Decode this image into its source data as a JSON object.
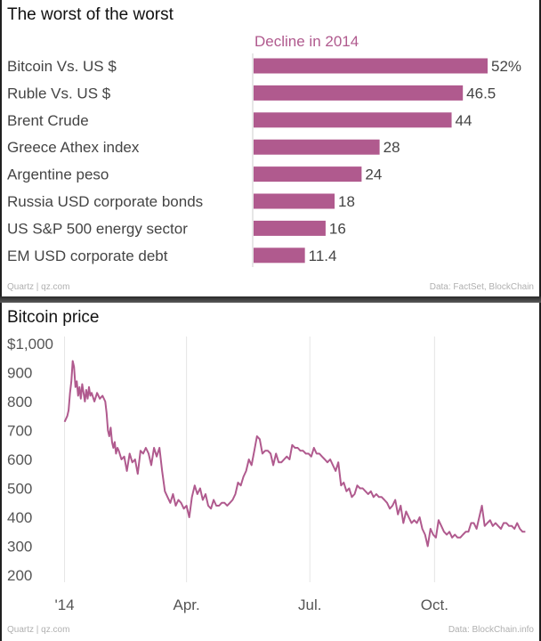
{
  "chart_data": [
    {
      "type": "bar",
      "orientation": "horizontal",
      "title": "The worst of the worst",
      "series_label": "Decline in 2014",
      "categories": [
        "Bitcoin Vs. US $",
        "Ruble Vs. US $",
        "Brent Crude",
        "Greece Athex index",
        "Argentine peso",
        "Russia USD corporate bonds",
        "US S&P 500 energy sector",
        "EM USD corporate debt"
      ],
      "values": [
        52,
        46.5,
        44,
        28,
        24,
        18,
        16,
        11.4
      ],
      "value_labels": [
        "52%",
        "46.5",
        "44",
        "28",
        "24",
        "18",
        "16",
        "11.4"
      ],
      "xlim": [
        0,
        60
      ],
      "bar_color": "#b05a8e",
      "source_left": "Quartz | qz.com",
      "source_right": "Data: FactSet, BlockChain"
    },
    {
      "type": "line",
      "title": "Bitcoin price",
      "ylim": [
        200,
        1000
      ],
      "y_ticks": [
        200,
        300,
        400,
        500,
        600,
        700,
        800,
        900,
        1000
      ],
      "y_tick_labels": [
        "200",
        "300",
        "400",
        "500",
        "600",
        "700",
        "800",
        "900",
        "$1,000"
      ],
      "x_ticks": [
        0,
        90,
        181,
        273
      ],
      "x_tick_labels": [
        "'14",
        "Apr.",
        "Jul.",
        "Oct."
      ],
      "xlim": [
        -3,
        345
      ],
      "line_color": "#b05a8e",
      "source_left": "Quartz | qz.com",
      "source_right": "Data: BlockChain.info",
      "series": [
        {
          "x": [
            0,
            2,
            3,
            4,
            5,
            6,
            7,
            8,
            9,
            10,
            11,
            12,
            13,
            14,
            15,
            16,
            17,
            18,
            19,
            20,
            22,
            24,
            26,
            28,
            30,
            31,
            32,
            33,
            34,
            35,
            36,
            37,
            38,
            39,
            40,
            42,
            44,
            46,
            48,
            50,
            52,
            54,
            56,
            58,
            60,
            62,
            64,
            66,
            68,
            70,
            72,
            74,
            76,
            78,
            80,
            82,
            84,
            86,
            88,
            90,
            92,
            94,
            96,
            98,
            100,
            102,
            104,
            106,
            108,
            110,
            112,
            114,
            116,
            118,
            120,
            122,
            124,
            126,
            128,
            130,
            132,
            134,
            136,
            138,
            140,
            142,
            144,
            146,
            148,
            150,
            152,
            153,
            154,
            156,
            158,
            160,
            162,
            164,
            166,
            168,
            170,
            172,
            174,
            176,
            178,
            180,
            182,
            184,
            186,
            188,
            190,
            192,
            194,
            196,
            198,
            200,
            202,
            204,
            206,
            208,
            210,
            212,
            214,
            216,
            218,
            220,
            222,
            224,
            226,
            228,
            230,
            232,
            234,
            236,
            238,
            240,
            242,
            244,
            246,
            248,
            250,
            252,
            254,
            256,
            258,
            260,
            262,
            264,
            266,
            268,
            270,
            272,
            274,
            276,
            278,
            280,
            282,
            284,
            286,
            288,
            290,
            292,
            294,
            296,
            298,
            300,
            302,
            304,
            306,
            308,
            310,
            312,
            314,
            316,
            318,
            320,
            322,
            324,
            326,
            328,
            330,
            332,
            334,
            336,
            338,
            340
          ],
          "y": [
            730,
            750,
            770,
            830,
            870,
            940,
            920,
            850,
            870,
            820,
            850,
            810,
            860,
            830,
            800,
            840,
            810,
            850,
            820,
            830,
            800,
            830,
            810,
            820,
            800,
            760,
            700,
            680,
            710,
            660,
            640,
            660,
            620,
            640,
            630,
            600,
            610,
            560,
            620,
            590,
            600,
            550,
            630,
            620,
            640,
            620,
            580,
            640,
            610,
            640,
            560,
            490,
            470,
            450,
            480,
            440,
            460,
            450,
            430,
            440,
            400,
            470,
            510,
            480,
            500,
            460,
            480,
            440,
            430,
            460,
            440,
            440,
            450,
            450,
            440,
            450,
            460,
            480,
            520,
            510,
            540,
            560,
            600,
            580,
            630,
            680,
            670,
            620,
            630,
            630,
            620,
            600,
            580,
            620,
            590,
            590,
            600,
            610,
            600,
            650,
            640,
            640,
            630,
            630,
            620,
            620,
            610,
            640,
            620,
            620,
            610,
            600,
            590,
            600,
            580,
            560,
            590,
            510,
            520,
            490,
            500,
            470,
            480,
            510,
            500,
            500,
            490,
            480,
            490,
            470,
            480,
            470,
            470,
            460,
            450,
            430,
            440,
            460,
            410,
            440,
            380,
            420,
            400,
            380,
            390,
            380,
            400,
            360,
            340,
            300,
            360,
            340,
            330,
            390,
            370,
            350,
            340,
            350,
            330,
            340,
            330,
            330,
            340,
            350,
            350,
            380,
            380,
            360,
            400,
            440,
            370,
            380,
            390,
            370,
            380,
            370,
            360,
            380,
            380,
            370,
            370,
            360,
            380,
            360,
            350,
            350
          ]
        }
      ]
    }
  ]
}
